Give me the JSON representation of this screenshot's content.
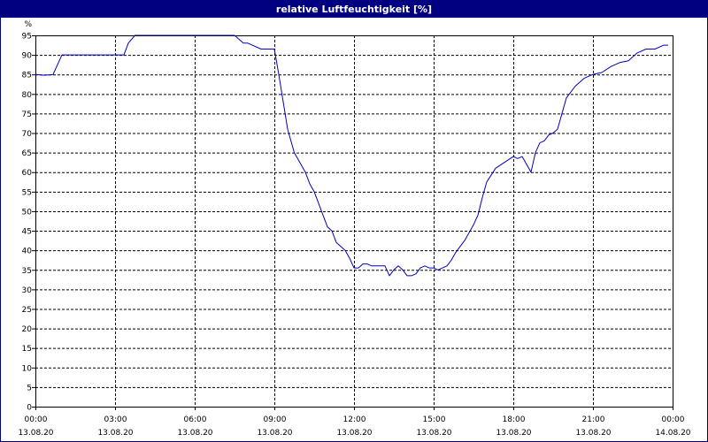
{
  "window": {
    "title": "relative Luftfeuchtigkeit [%]"
  },
  "chart_data": {
    "type": "line",
    "title": "relative Luftfeuchtigkeit [%]",
    "ylabel": "%",
    "ylim": [
      0,
      95
    ],
    "yticks": [
      0,
      5,
      10,
      15,
      20,
      25,
      30,
      35,
      40,
      45,
      50,
      55,
      60,
      65,
      70,
      75,
      80,
      85,
      90,
      95
    ],
    "xlim": [
      "13.08.20 00:00",
      "14.08.20 00:00"
    ],
    "xticks": [
      {
        "time": "00:00",
        "date": "13.08.20"
      },
      {
        "time": "03:00",
        "date": "13.08.20"
      },
      {
        "time": "06:00",
        "date": "13.08.20"
      },
      {
        "time": "09:00",
        "date": "13.08.20"
      },
      {
        "time": "12:00",
        "date": "13.08.20"
      },
      {
        "time": "15:00",
        "date": "13.08.20"
      },
      {
        "time": "18:00",
        "date": "13.08.20"
      },
      {
        "time": "21:00",
        "date": "13.08.20"
      },
      {
        "time": "00:00",
        "date": "14.08.20"
      }
    ],
    "grid": true,
    "line_color": "#0000c0",
    "series": [
      {
        "x": [
          "00:00",
          "00:20",
          "00:40",
          "01:00",
          "01:30",
          "02:00",
          "02:30",
          "03:00",
          "03:20",
          "03:30",
          "03:45",
          "04:00",
          "05:00",
          "06:00",
          "07:00",
          "07:30",
          "07:40",
          "07:50",
          "08:00",
          "08:30",
          "09:00",
          "09:10",
          "09:20",
          "09:30",
          "09:45",
          "10:00",
          "10:10",
          "10:20",
          "10:30",
          "10:40",
          "10:50",
          "11:00",
          "11:10",
          "11:20",
          "11:30",
          "11:40",
          "11:50",
          "12:00",
          "12:10",
          "12:20",
          "12:30",
          "12:40",
          "13:00",
          "13:10",
          "13:20",
          "13:30",
          "13:40",
          "13:50",
          "14:00",
          "14:10",
          "14:20",
          "14:30",
          "14:40",
          "14:50",
          "15:00",
          "15:10",
          "15:20",
          "15:30",
          "15:40",
          "15:50",
          "16:00",
          "16:10",
          "16:20",
          "16:30",
          "16:40",
          "16:50",
          "17:00",
          "17:20",
          "17:40",
          "18:00",
          "18:10",
          "18:20",
          "18:30",
          "18:40",
          "18:50",
          "19:00",
          "19:10",
          "19:20",
          "19:30",
          "19:40",
          "20:00",
          "20:20",
          "20:40",
          "21:00",
          "21:20",
          "21:40",
          "22:00",
          "22:20",
          "22:40",
          "23:00",
          "23:20",
          "23:40",
          "23:50"
        ],
        "y": [
          85,
          84.8,
          85,
          90,
          90,
          90,
          90,
          90,
          90,
          93,
          95,
          95,
          95,
          95,
          95,
          95,
          94,
          93,
          93,
          91.5,
          91.5,
          85,
          78,
          71,
          65,
          62,
          60,
          57,
          55,
          52,
          49,
          46,
          45,
          42,
          41,
          40,
          38,
          35.5,
          35.5,
          36.5,
          36.5,
          36,
          36,
          36,
          33.5,
          35,
          36,
          35,
          33.5,
          33.5,
          34,
          35.5,
          36,
          35.5,
          35.5,
          35,
          35.5,
          36,
          37.5,
          39.5,
          41,
          42.5,
          44.5,
          46.5,
          49,
          53.5,
          57.5,
          61,
          62.5,
          64,
          63.5,
          64,
          62,
          60,
          65,
          67.5,
          68,
          69.5,
          70,
          71,
          79,
          82,
          84,
          85,
          85.5,
          87,
          88,
          88.5,
          90.5,
          91.5,
          91.5,
          92.5,
          92.5
        ]
      }
    ]
  }
}
